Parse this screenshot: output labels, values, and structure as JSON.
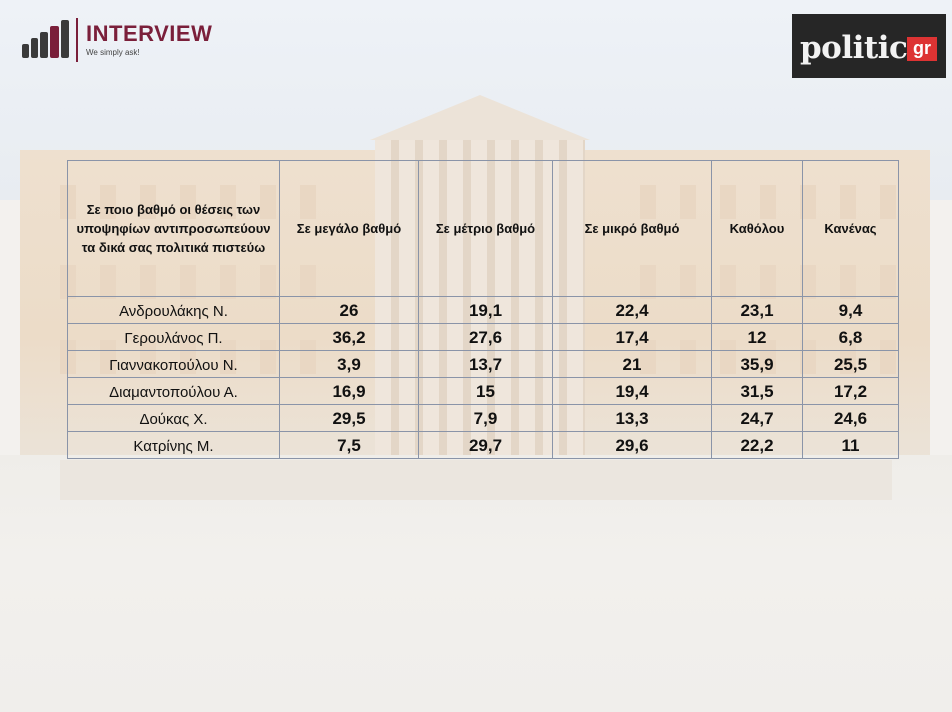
{
  "logos": {
    "interview_title": "INTERVIEW",
    "interview_tagline": "We simply ask!",
    "politic_word": "politic",
    "politic_suffix": "gr"
  },
  "chart_data": {
    "type": "table",
    "question": "Σε ποιο βαθμό οι θέσεις των υποψηφίων αντιπροσωπεύουν τα δικά σας πολιτικά πιστεύω",
    "columns": [
      "Σε μεγάλο βαθμό",
      "Σε μέτριο βαθμό",
      "Σε μικρό βαθμό",
      "Καθόλου",
      "Κανένας"
    ],
    "rows": [
      {
        "name": "Ανδρουλάκης Ν.",
        "values": [
          "26",
          "19,1",
          "22,4",
          "23,1",
          "9,4"
        ]
      },
      {
        "name": "Γερουλάνος Π.",
        "values": [
          "36,2",
          "27,6",
          "17,4",
          "12",
          "6,8"
        ]
      },
      {
        "name": "Γιαννακοπούλου Ν.",
        "values": [
          "3,9",
          "13,7",
          "21",
          "35,9",
          "25,5"
        ]
      },
      {
        "name": "Διαμαντοπούλου Α.",
        "values": [
          "16,9",
          "15",
          "19,4",
          "31,5",
          "17,2"
        ]
      },
      {
        "name": "Δούκας Χ.",
        "values": [
          "29,5",
          "7,9",
          "13,3",
          "24,7",
          "24,6"
        ]
      },
      {
        "name": "Κατρίνης Μ.",
        "values": [
          "7,5",
          "29,7",
          "29,6",
          "22,2",
          "11"
        ]
      }
    ]
  }
}
